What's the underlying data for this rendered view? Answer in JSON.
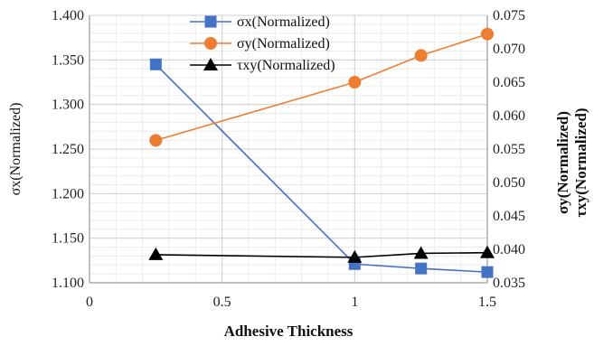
{
  "chart_data": {
    "type": "line",
    "xlabel": "Adhesive Thickness",
    "ylabel_left": "σx(Normalized)",
    "ylabel_right": [
      "σy(Normalized)",
      "τxy(Normalized)"
    ],
    "xlim": [
      0,
      1.5
    ],
    "x_ticks": [
      "0",
      "0.5",
      "1",
      "1.5"
    ],
    "x_tick_values": [
      0,
      0.5,
      1,
      1.5
    ],
    "ylim_left": [
      1.1,
      1.4
    ],
    "y_left_ticks": [
      "1.100",
      "1.150",
      "1.200",
      "1.250",
      "1.300",
      "1.350",
      "1.400"
    ],
    "y_left_tick_values": [
      1.1,
      1.15,
      1.2,
      1.25,
      1.3,
      1.35,
      1.4
    ],
    "ylim_right": [
      0.035,
      0.075
    ],
    "y_right_ticks": [
      "0.035",
      "0.040",
      "0.045",
      "0.050",
      "0.055",
      "0.060",
      "0.065",
      "0.070",
      "0.075"
    ],
    "y_right_tick_values": [
      0.035,
      0.04,
      0.045,
      0.05,
      0.055,
      0.06,
      0.065,
      0.07,
      0.075
    ],
    "grid": true,
    "legend_position": "top-center",
    "series": [
      {
        "name": "σx(Normalized)",
        "axis": "left",
        "marker": "square",
        "color": "#4472C4",
        "x": [
          0.25,
          1,
          1.25,
          1.5
        ],
        "y": [
          1.345,
          1.121,
          1.116,
          1.112
        ]
      },
      {
        "name": "σy(Normalized)",
        "axis": "right",
        "marker": "circle",
        "color": "#ED7D31",
        "x": [
          0.25,
          1,
          1.25,
          1.5
        ],
        "y": [
          0.0563,
          0.065,
          0.069,
          0.0722
        ]
      },
      {
        "name": "τxy(Normalized)",
        "axis": "right",
        "marker": "triangle",
        "color": "#000000",
        "x": [
          0.25,
          1,
          1.25,
          1.5
        ],
        "y": [
          0.0392,
          0.0388,
          0.0394,
          0.0395
        ]
      }
    ]
  }
}
